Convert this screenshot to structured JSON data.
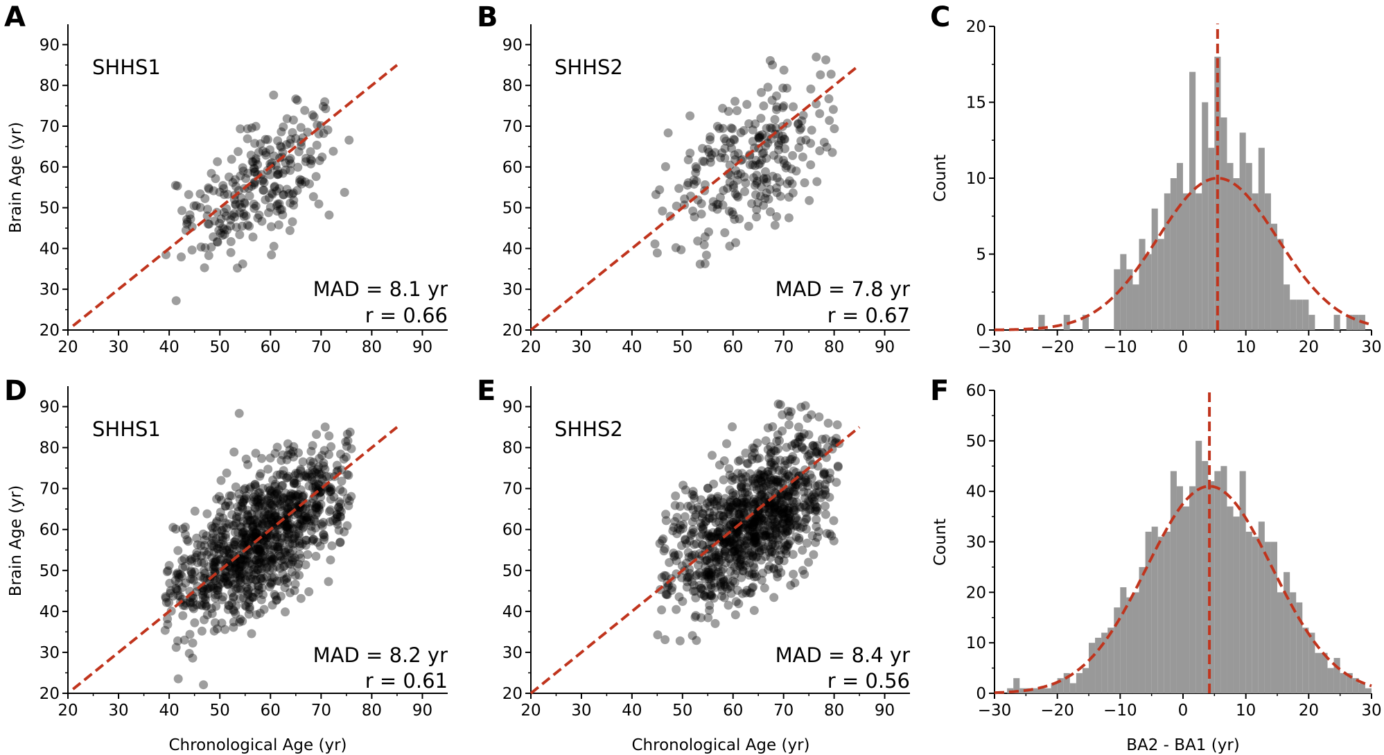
{
  "colors": {
    "scatter_point": "#000000",
    "identity_line": "#c0341d",
    "histogram_bar": "#999999",
    "gaussian_fit": "#c0341d",
    "mean_line": "#c0341d",
    "axis": "#000000"
  },
  "chart_data": [
    {
      "panel": "A",
      "type": "scatter",
      "label": "SHHS1",
      "stats": [
        "MAD = 8.1 yr",
        "r = 0.66"
      ],
      "xlabel": "",
      "ylabel": "Brain Age (yr)",
      "xlim": [
        20,
        95
      ],
      "ylim": [
        20,
        95
      ],
      "xticks": [
        20,
        30,
        40,
        50,
        60,
        70,
        80,
        90
      ],
      "yticks": [
        20,
        30,
        40,
        50,
        60,
        70,
        80,
        90
      ],
      "x_range": [
        39,
        76
      ],
      "reference_line": [
        [
          21,
          21
        ],
        [
          85,
          85
        ]
      ],
      "n_points": 250,
      "center": [
        58,
        56
      ],
      "spread": [
        8.5,
        10.5
      ],
      "slope": 0.72
    },
    {
      "panel": "B",
      "type": "scatter",
      "label": "SHHS2",
      "stats": [
        "MAD = 7.8 yr",
        "r = 0.67"
      ],
      "xlabel": "",
      "ylabel": "",
      "xlim": [
        20,
        95
      ],
      "ylim": [
        20,
        95
      ],
      "xticks": [
        20,
        30,
        40,
        50,
        60,
        70,
        80,
        90
      ],
      "yticks": [
        20,
        30,
        40,
        50,
        60,
        70,
        80,
        90
      ],
      "x_range": [
        44,
        81
      ],
      "reference_line": [
        [
          20,
          20
        ],
        [
          85,
          85
        ]
      ],
      "n_points": 250,
      "center": [
        63,
        61
      ],
      "spread": [
        8.5,
        11
      ],
      "slope": 0.75
    },
    {
      "panel": "C",
      "type": "bar",
      "xlabel": "",
      "ylabel": "Count",
      "xlim": [
        -30,
        30
      ],
      "ylim": [
        0,
        20
      ],
      "xticks": [
        -30,
        -20,
        -10,
        0,
        10,
        20,
        30
      ],
      "yticks": [
        0,
        5,
        10,
        15,
        20
      ],
      "bin_width": 1,
      "categories": [
        -23,
        -22,
        -21,
        -20,
        -19,
        -18,
        -17,
        -16,
        -15,
        -14,
        -13,
        -12,
        -11,
        -10,
        -9,
        -8,
        -7,
        -6,
        -5,
        -4,
        -3,
        -2,
        -1,
        0,
        1,
        2,
        3,
        4,
        5,
        6,
        7,
        8,
        9,
        10,
        11,
        12,
        13,
        14,
        15,
        16,
        17,
        18,
        19,
        20,
        21,
        22,
        23,
        24,
        25,
        26,
        27,
        28
      ],
      "values": [
        1,
        0,
        0,
        0,
        1,
        0,
        0,
        1,
        0,
        0,
        0,
        0,
        4,
        5,
        4,
        3,
        6,
        5,
        8,
        6,
        9,
        10,
        11,
        9,
        17,
        9,
        15,
        12,
        18,
        14,
        11,
        10,
        13,
        11,
        9,
        12,
        9,
        7,
        6,
        3,
        2,
        2,
        2,
        1,
        0,
        0,
        0,
        1,
        0,
        1,
        1,
        1
      ],
      "fit": {
        "type": "gaussian",
        "mean": 5.5,
        "sd": 9.5,
        "peak": 10
      },
      "mean_line": 5.5
    },
    {
      "panel": "D",
      "type": "scatter",
      "label": "SHHS1",
      "stats": [
        "MAD = 8.2 yr",
        "r = 0.61"
      ],
      "xlabel": "Chronological Age (yr)",
      "ylabel": "Brain Age (yr)",
      "xlim": [
        20,
        95
      ],
      "ylim": [
        20,
        95
      ],
      "xticks": [
        20,
        30,
        40,
        50,
        60,
        70,
        80,
        90
      ],
      "yticks": [
        20,
        30,
        40,
        50,
        60,
        70,
        80,
        90
      ],
      "x_range": [
        39,
        76
      ],
      "reference_line": [
        [
          21,
          21
        ],
        [
          85,
          85
        ]
      ],
      "n_points": 1000,
      "center": [
        58,
        58
      ],
      "spread": [
        9,
        11.5
      ],
      "slope": 0.78
    },
    {
      "panel": "E",
      "type": "scatter",
      "label": "SHHS2",
      "stats": [
        "MAD = 8.4 yr",
        "r = 0.56"
      ],
      "xlabel": "Chronological Age (yr)",
      "ylabel": "",
      "xlim": [
        20,
        95
      ],
      "ylim": [
        20,
        95
      ],
      "xticks": [
        20,
        30,
        40,
        50,
        60,
        70,
        80,
        90
      ],
      "yticks": [
        20,
        30,
        40,
        50,
        60,
        70,
        80,
        90
      ],
      "x_range": [
        45,
        81
      ],
      "reference_line": [
        [
          20,
          20
        ],
        [
          85,
          85
        ]
      ],
      "n_points": 1000,
      "center": [
        64,
        62
      ],
      "spread": [
        9,
        12
      ],
      "slope": 0.72
    },
    {
      "panel": "F",
      "type": "bar",
      "xlabel": "BA2 - BA1 (yr)",
      "ylabel": "Count",
      "xlim": [
        -30,
        30
      ],
      "ylim": [
        0,
        60
      ],
      "xticks": [
        -30,
        -20,
        -10,
        0,
        10,
        20,
        30
      ],
      "yticks": [
        0,
        10,
        20,
        30,
        40,
        50,
        60
      ],
      "bin_width": 1,
      "categories": [
        -28,
        -27,
        -26,
        -25,
        -24,
        -23,
        -22,
        -21,
        -20,
        -19,
        -18,
        -17,
        -16,
        -15,
        -14,
        -13,
        -12,
        -11,
        -10,
        -9,
        -8,
        -7,
        -6,
        -5,
        -4,
        -3,
        -2,
        -1,
        0,
        1,
        2,
        3,
        4,
        5,
        6,
        7,
        8,
        9,
        10,
        11,
        12,
        13,
        14,
        15,
        16,
        17,
        18,
        19,
        20,
        21,
        22,
        23,
        24,
        25,
        26,
        27,
        28,
        29
      ],
      "values": [
        1,
        3,
        1,
        1,
        1,
        1,
        1,
        2,
        3,
        4,
        2,
        4,
        5,
        10,
        11,
        12,
        13,
        17,
        21,
        19,
        20,
        25,
        32,
        33,
        31,
        32,
        44,
        41,
        37,
        41,
        50,
        46,
        42,
        44,
        45,
        37,
        35,
        44,
        32,
        31,
        34,
        30,
        30,
        20,
        24,
        20,
        18,
        13,
        12,
        8,
        8,
        5,
        7,
        4,
        4,
        3,
        2,
        1
      ],
      "fit": {
        "type": "gaussian",
        "mean": 4.2,
        "sd": 10,
        "peak": 41
      },
      "mean_line": 4.2
    }
  ]
}
